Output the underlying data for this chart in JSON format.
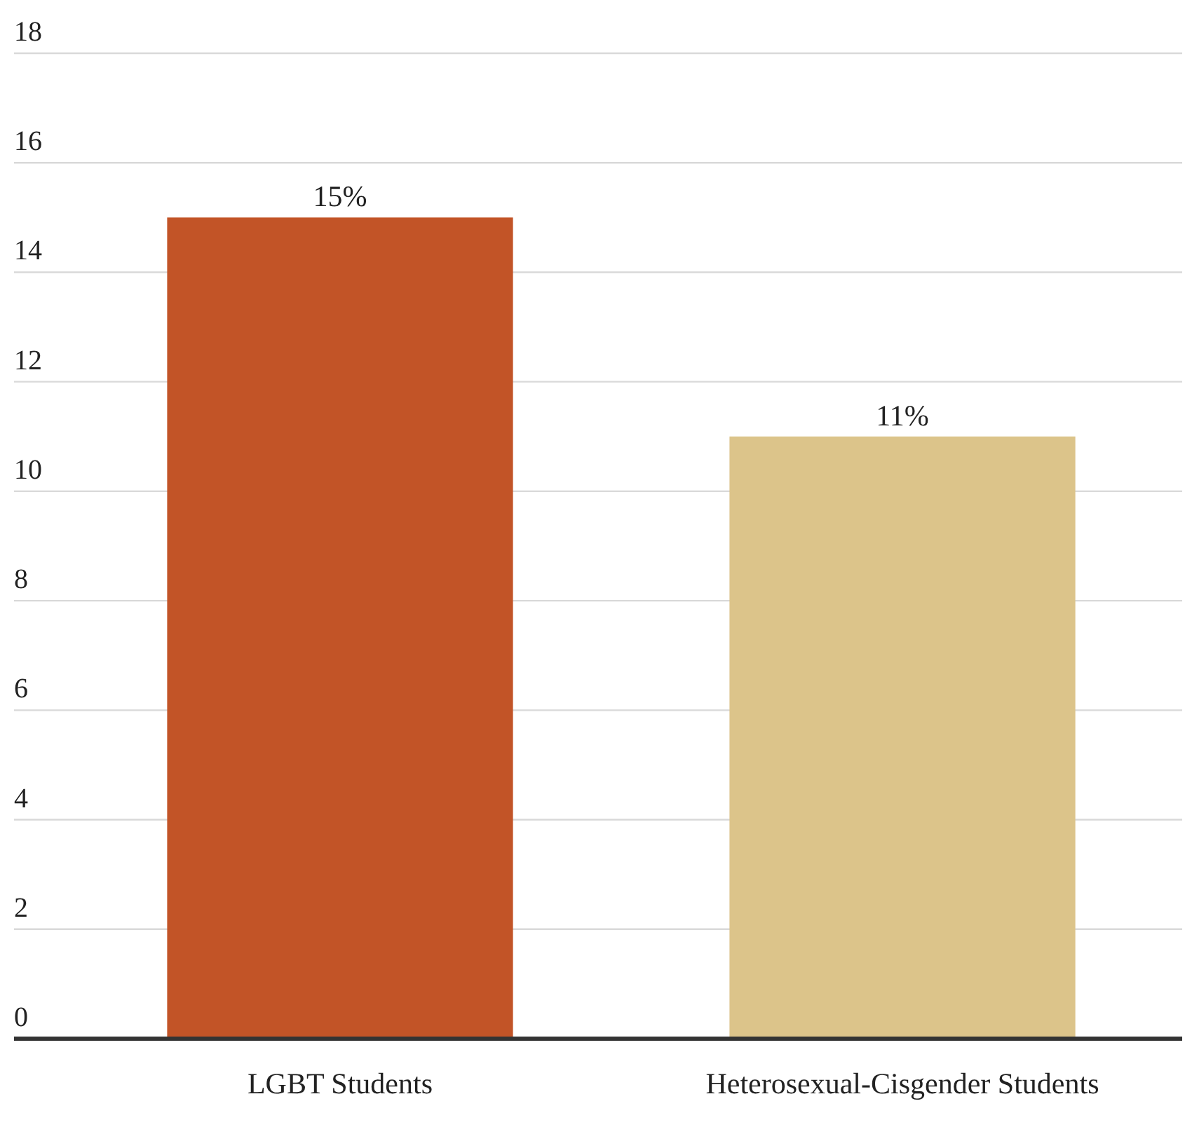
{
  "chart_data": {
    "type": "bar",
    "categories": [
      "LGBT Students",
      "Heterosexual-Cisgender Students"
    ],
    "values": [
      15,
      11
    ],
    "colors": [
      "#c25427",
      "#dcc48a"
    ],
    "value_labels": [
      "15%",
      "11%"
    ],
    "ylim": [
      0,
      18
    ],
    "yticks": [
      0,
      2,
      4,
      6,
      8,
      10,
      12,
      14,
      16,
      18
    ],
    "grid": "y"
  }
}
